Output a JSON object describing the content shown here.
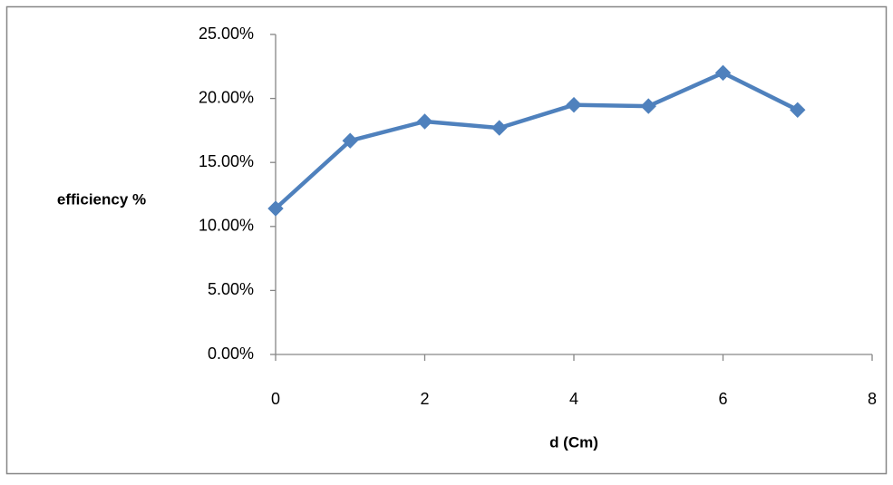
{
  "chart_data": {
    "type": "line",
    "title": "",
    "xlabel": "d (Cm)",
    "ylabel": "efficiency %",
    "xlim": [
      0,
      8
    ],
    "ylim": [
      0,
      0.25
    ],
    "x_ticks": [
      0,
      2,
      4,
      6,
      8
    ],
    "y_ticks": [
      0,
      0.05,
      0.1,
      0.15,
      0.2,
      0.25
    ],
    "x_tick_labels": [
      "0",
      "2",
      "4",
      "6",
      "8"
    ],
    "y_tick_labels": [
      "0.00%",
      "5.00%",
      "10.00%",
      "15.00%",
      "20.00%",
      "25.00%"
    ],
    "grid": false,
    "legend": "none",
    "series": [
      {
        "x": [
          0,
          1,
          2,
          3,
          4,
          5,
          6,
          7
        ],
        "values": [
          0.114,
          0.167,
          0.182,
          0.177,
          0.195,
          0.194,
          0.22,
          0.191
        ],
        "color": "#4F81BD",
        "marker": "diamond"
      }
    ]
  }
}
